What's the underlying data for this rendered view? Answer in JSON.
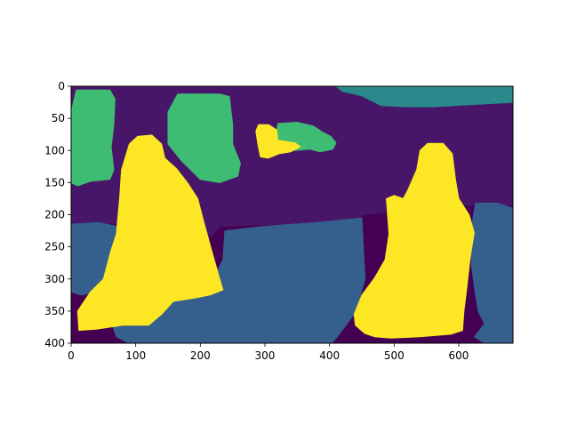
{
  "chart_data": {
    "type": "heatmap",
    "title": "",
    "xlabel": "",
    "ylabel": "",
    "xlim": [
      0,
      684
    ],
    "ylim": [
      400,
      0
    ],
    "y_inverted": true,
    "x_ticks": [
      0,
      100,
      200,
      300,
      400,
      500,
      600
    ],
    "y_ticks": [
      0,
      50,
      100,
      150,
      200,
      250,
      300,
      350,
      400
    ],
    "colormap": "viridis",
    "regions": [
      {
        "name": "dark-purple",
        "color": "#440154",
        "points": [
          [
            0,
            0
          ],
          [
            684,
            0
          ],
          [
            684,
            400
          ],
          [
            0,
            400
          ]
        ]
      },
      {
        "name": "purple",
        "color": "#481668",
        "points": [
          [
            0,
            0
          ],
          [
            684,
            0
          ],
          [
            684,
            185
          ],
          [
            600,
            186
          ],
          [
            550,
            190
          ],
          [
            520,
            193
          ],
          [
            450,
            200
          ],
          [
            440,
            212
          ],
          [
            400,
            216
          ],
          [
            310,
            215
          ],
          [
            230,
            218
          ],
          [
            215,
            235
          ],
          [
            120,
            248
          ],
          [
            90,
            250
          ],
          [
            80,
            215
          ],
          [
            40,
            212
          ],
          [
            0,
            215
          ]
        ]
      },
      {
        "name": "teal",
        "color": "#2a8a8b",
        "points": [
          [
            410,
            0
          ],
          [
            684,
            0
          ],
          [
            684,
            25
          ],
          [
            560,
            32
          ],
          [
            520,
            32
          ],
          [
            480,
            30
          ],
          [
            450,
            15
          ],
          [
            420,
            8
          ]
        ]
      },
      {
        "name": "green-left",
        "color": "#3fbc73",
        "points": [
          [
            8,
            6
          ],
          [
            60,
            6
          ],
          [
            68,
            20
          ],
          [
            66,
            60
          ],
          [
            62,
            95
          ],
          [
            66,
            130
          ],
          [
            60,
            145
          ],
          [
            30,
            148
          ],
          [
            10,
            155
          ],
          [
            0,
            150
          ],
          [
            0,
            40
          ]
        ]
      },
      {
        "name": "green-center-left",
        "color": "#3fbc73",
        "points": [
          [
            165,
            12
          ],
          [
            230,
            12
          ],
          [
            245,
            16
          ],
          [
            250,
            60
          ],
          [
            250,
            90
          ],
          [
            262,
            120
          ],
          [
            258,
            140
          ],
          [
            230,
            150
          ],
          [
            200,
            145
          ],
          [
            170,
            115
          ],
          [
            150,
            90
          ],
          [
            150,
            40
          ]
        ]
      },
      {
        "name": "green-small",
        "color": "#3fbc73",
        "points": [
          [
            320,
            58
          ],
          [
            350,
            56
          ],
          [
            375,
            62
          ],
          [
            390,
            72
          ],
          [
            402,
            78
          ],
          [
            410,
            88
          ],
          [
            405,
            98
          ],
          [
            385,
            102
          ],
          [
            370,
            98
          ],
          [
            345,
            100
          ],
          [
            325,
            93
          ],
          [
            315,
            84
          ],
          [
            318,
            70
          ]
        ]
      },
      {
        "name": "yellow-small",
        "color": "#fde725",
        "points": [
          [
            290,
            60
          ],
          [
            306,
            60
          ],
          [
            318,
            68
          ],
          [
            320,
            84
          ],
          [
            346,
            88
          ],
          [
            355,
            94
          ],
          [
            340,
            102
          ],
          [
            322,
            105
          ],
          [
            305,
            112
          ],
          [
            293,
            110
          ],
          [
            289,
            90
          ],
          [
            286,
            70
          ]
        ]
      },
      {
        "name": "blue-large",
        "color": "#355f8d",
        "points": [
          [
            238,
            225
          ],
          [
            300,
            218
          ],
          [
            380,
            212
          ],
          [
            450,
            205
          ],
          [
            455,
            300
          ],
          [
            440,
            352
          ],
          [
            412,
            390
          ],
          [
            403,
            400
          ],
          [
            90,
            400
          ],
          [
            70,
            390
          ],
          [
            60,
            360
          ],
          [
            100,
            352
          ],
          [
            140,
            330
          ],
          [
            180,
            318
          ],
          [
            220,
            300
          ],
          [
            235,
            270
          ]
        ]
      },
      {
        "name": "blue-left",
        "color": "#355f8d",
        "points": [
          [
            0,
            215
          ],
          [
            42,
            212
          ],
          [
            70,
            218
          ],
          [
            88,
            235
          ],
          [
            70,
            270
          ],
          [
            58,
            300
          ],
          [
            40,
            320
          ],
          [
            15,
            325
          ],
          [
            0,
            320
          ]
        ]
      },
      {
        "name": "blue-right",
        "color": "#355f8d",
        "points": [
          [
            626,
            182
          ],
          [
            660,
            182
          ],
          [
            684,
            190
          ],
          [
            684,
            400
          ],
          [
            640,
            400
          ],
          [
            624,
            390
          ],
          [
            640,
            370
          ],
          [
            630,
            350
          ],
          [
            625,
            318
          ],
          [
            620,
            280
          ],
          [
            618,
            230
          ]
        ]
      },
      {
        "name": "yellow-left-person",
        "color": "#fde725",
        "points": [
          [
            103,
            78
          ],
          [
            125,
            76
          ],
          [
            140,
            90
          ],
          [
            145,
            112
          ],
          [
            163,
            128
          ],
          [
            180,
            150
          ],
          [
            196,
            175
          ],
          [
            205,
            210
          ],
          [
            216,
            250
          ],
          [
            230,
            300
          ],
          [
            235,
            317
          ],
          [
            215,
            325
          ],
          [
            190,
            330
          ],
          [
            158,
            335
          ],
          [
            140,
            355
          ],
          [
            120,
            372
          ],
          [
            80,
            372
          ],
          [
            40,
            378
          ],
          [
            12,
            380
          ],
          [
            10,
            350
          ],
          [
            30,
            320
          ],
          [
            50,
            300
          ],
          [
            62,
            255
          ],
          [
            70,
            230
          ],
          [
            75,
            175
          ],
          [
            78,
            130
          ],
          [
            90,
            90
          ]
        ]
      },
      {
        "name": "yellow-right-person",
        "color": "#fde725",
        "points": [
          [
            552,
            89
          ],
          [
            576,
            89
          ],
          [
            590,
            105
          ],
          [
            595,
            145
          ],
          [
            600,
            175
          ],
          [
            616,
            200
          ],
          [
            624,
            228
          ],
          [
            618,
            265
          ],
          [
            612,
            318
          ],
          [
            608,
            350
          ],
          [
            606,
            380
          ],
          [
            588,
            386
          ],
          [
            540,
            390
          ],
          [
            495,
            392
          ],
          [
            470,
            390
          ],
          [
            455,
            385
          ],
          [
            440,
            372
          ],
          [
            438,
            355
          ],
          [
            450,
            325
          ],
          [
            470,
            298
          ],
          [
            486,
            270
          ],
          [
            492,
            230
          ],
          [
            488,
            175
          ],
          [
            500,
            170
          ],
          [
            514,
            175
          ],
          [
            521,
            162
          ],
          [
            535,
            130
          ],
          [
            540,
            100
          ]
        ]
      }
    ]
  }
}
